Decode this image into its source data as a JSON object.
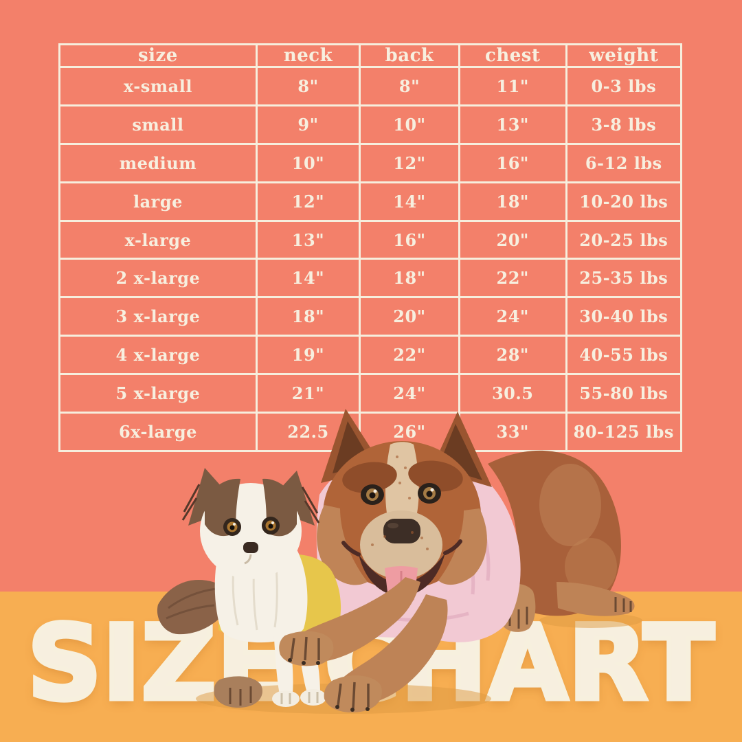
{
  "chart_data": {
    "type": "table",
    "title": "SIZE CHART",
    "columns": [
      "size",
      "neck",
      "back",
      "chest",
      "weight"
    ],
    "rows": [
      [
        "x-small",
        "8\"",
        "8\"",
        "11\"",
        "0-3 lbs"
      ],
      [
        "small",
        "9\"",
        "10\"",
        "13\"",
        "3-8 lbs"
      ],
      [
        "medium",
        "10\"",
        "12\"",
        "16\"",
        "6-12 lbs"
      ],
      [
        "large",
        "12\"",
        "14\"",
        "18\"",
        "10-20 lbs"
      ],
      [
        "x-large",
        "13\"",
        "16\"",
        "20\"",
        "20-25 lbs"
      ],
      [
        "2 x-large",
        "14\"",
        "18\"",
        "22\"",
        "25-35 lbs"
      ],
      [
        "3 x-large",
        "18\"",
        "20\"",
        "24\"",
        "30-40 lbs"
      ],
      [
        "4 x-large",
        "19\"",
        "22\"",
        "28\"",
        "40-55 lbs"
      ],
      [
        "5 x-large",
        "21\"",
        "24\"",
        "30.5",
        "55-80 lbs"
      ],
      [
        "6x-large",
        "22.5",
        "26\"",
        "33\"",
        "80-125 lbs"
      ]
    ],
    "grid": "on",
    "layout": "table centered on upper coral panel, title banner across bottom orange band"
  },
  "footer": {
    "title": "SIZE CHART"
  },
  "colors": {
    "coral_background": "#F3806A",
    "orange_band": "#F7AE52",
    "cream_text": "#F7EFDF",
    "table_lines": "#F6EEDD"
  },
  "illustration": {
    "description": "two dogs wearing shirts in front of the chart",
    "chihuahua": {
      "fur_brown": "#7B5A42",
      "fur_white": "#F6F1E7",
      "shirt_yellow": "#E7C64B"
    },
    "cattle_dog": {
      "fur_rust": "#B06438",
      "fur_rump": "#A8603A",
      "paw_tan": "#C08A5C",
      "leg_tan": "#BE8356",
      "muzzle_cream": "#D9BD9B",
      "blaze_cream": "#E0C5A3",
      "shirt_pink": "#F2C9D3",
      "tongue_pink": "#EE9CA2"
    }
  }
}
